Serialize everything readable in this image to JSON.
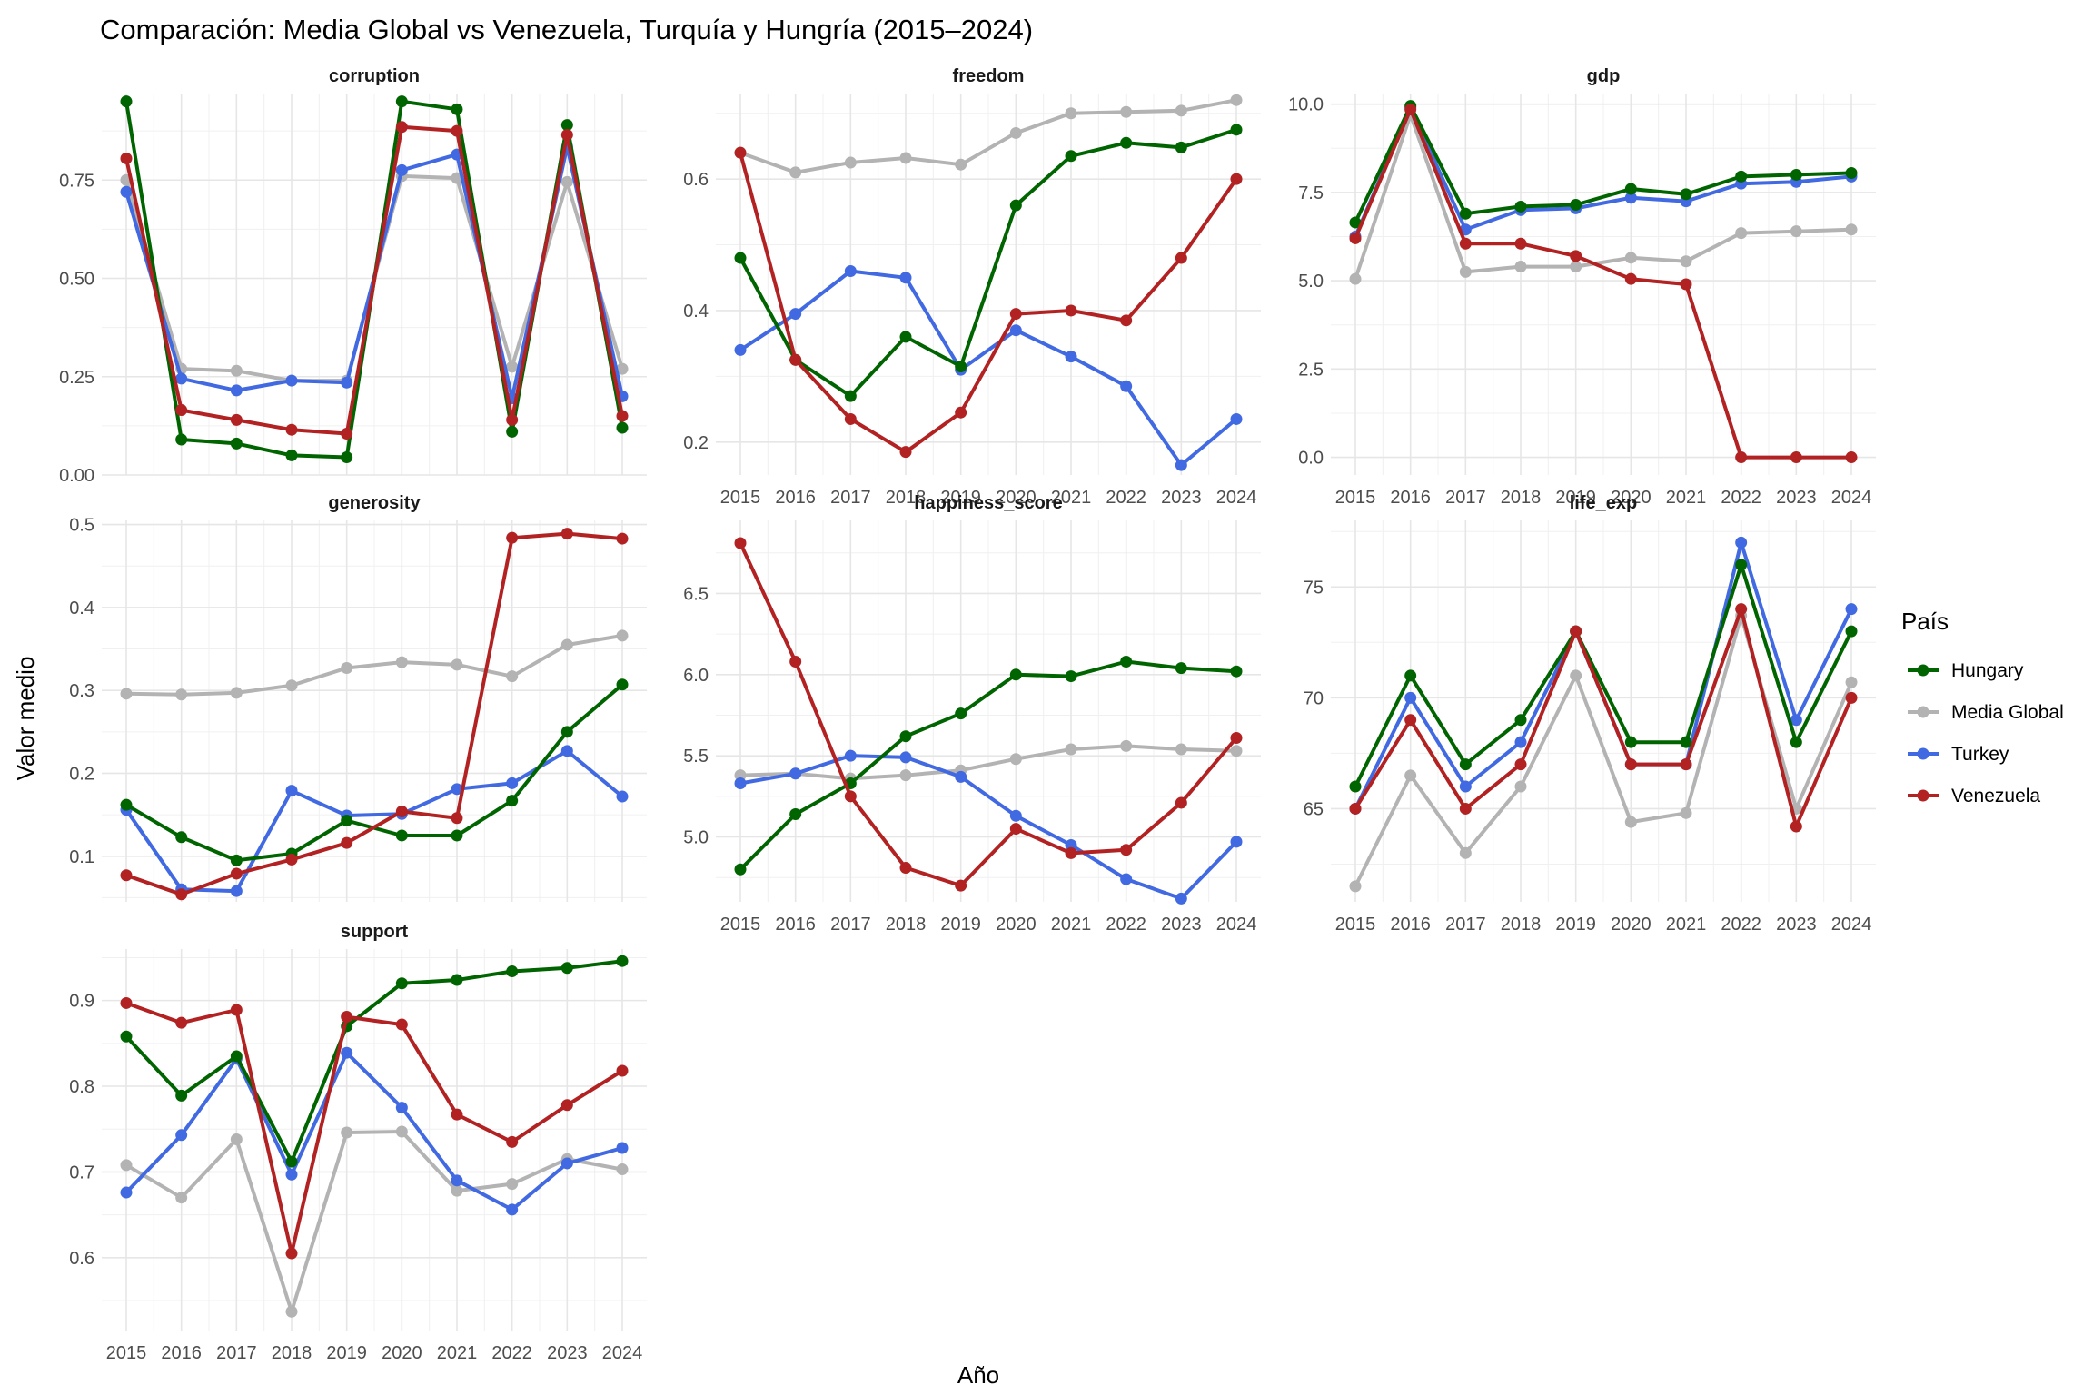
{
  "chart_data": {
    "type": "line",
    "title": "Comparación: Media Global vs Venezuela, Turquía y Hungría (2015–2024)",
    "xlabel": "Año",
    "ylabel": "Valor medio",
    "legend_title": "País",
    "legend_position": "right",
    "grid": true,
    "x": [
      2015,
      2016,
      2017,
      2018,
      2019,
      2020,
      2021,
      2022,
      2023,
      2024
    ],
    "x_tick_labels": [
      "2015",
      "2016",
      "2017",
      "2018",
      "2019",
      "2020",
      "2021",
      "2022",
      "2023",
      "2024"
    ],
    "series_styles": [
      {
        "name": "Hungary",
        "color": "#006400"
      },
      {
        "name": "Media Global",
        "color": "#b3b3b3"
      },
      {
        "name": "Turkey",
        "color": "#4169e1"
      },
      {
        "name": "Venezuela",
        "color": "#b22222"
      }
    ],
    "panels": [
      {
        "title": "corruption",
        "ylim": [
          0,
          0.97
        ],
        "y_ticks": [
          0,
          0.25,
          0.5,
          0.75
        ],
        "y_tick_labels": [
          "0.00",
          "0.25",
          "0.50",
          "0.75"
        ],
        "series": [
          {
            "name": "Hungary",
            "values": [
              0.95,
              0.09,
              0.08,
              0.05,
              0.045,
              0.95,
              0.93,
              0.11,
              0.89,
              0.12
            ]
          },
          {
            "name": "Media Global",
            "values": [
              0.75,
              0.27,
              0.265,
              0.24,
              0.24,
              0.76,
              0.755,
              0.275,
              0.745,
              0.27
            ]
          },
          {
            "name": "Turkey",
            "values": [
              0.72,
              0.245,
              0.215,
              0.24,
              0.235,
              0.775,
              0.815,
              0.195,
              0.835,
              0.2
            ]
          },
          {
            "name": "Venezuela",
            "values": [
              0.805,
              0.165,
              0.14,
              0.115,
              0.105,
              0.885,
              0.875,
              0.14,
              0.865,
              0.15
            ]
          }
        ]
      },
      {
        "title": "freedom",
        "ylim": [
          0.15,
          0.73
        ],
        "y_ticks": [
          0.2,
          0.4,
          0.6
        ],
        "y_tick_labels": [
          "0.2",
          "0.4",
          "0.6"
        ],
        "series": [
          {
            "name": "Hungary",
            "values": [
              0.48,
              0.325,
              0.27,
              0.36,
              0.315,
              0.56,
              0.635,
              0.655,
              0.648,
              0.675
            ]
          },
          {
            "name": "Media Global",
            "values": [
              0.64,
              0.61,
              0.625,
              0.632,
              0.622,
              0.67,
              0.7,
              0.702,
              0.704,
              0.72
            ]
          },
          {
            "name": "Turkey",
            "values": [
              0.34,
              0.395,
              0.46,
              0.45,
              0.31,
              0.37,
              0.33,
              0.285,
              0.165,
              0.235
            ]
          },
          {
            "name": "Venezuela",
            "values": [
              0.64,
              0.325,
              0.235,
              0.185,
              0.245,
              0.395,
              0.4,
              0.385,
              0.48,
              0.6
            ]
          }
        ]
      },
      {
        "title": "gdp",
        "ylim": [
          -0.5,
          10.3
        ],
        "y_ticks": [
          0,
          2.5,
          5,
          7.5,
          10
        ],
        "y_tick_labels": [
          "0.0",
          "2.5",
          "5.0",
          "7.5",
          "10.0"
        ],
        "series": [
          {
            "name": "Hungary",
            "values": [
              6.65,
              9.95,
              6.9,
              7.1,
              7.15,
              7.6,
              7.45,
              7.95,
              8.0,
              8.05
            ]
          },
          {
            "name": "Media Global",
            "values": [
              5.05,
              9.7,
              5.25,
              5.4,
              5.4,
              5.65,
              5.55,
              6.35,
              6.4,
              6.45
            ]
          },
          {
            "name": "Turkey",
            "values": [
              6.25,
              9.9,
              6.45,
              7.0,
              7.05,
              7.35,
              7.25,
              7.75,
              7.8,
              7.95
            ]
          },
          {
            "name": "Venezuela",
            "values": [
              6.2,
              9.85,
              6.05,
              6.05,
              5.7,
              5.05,
              4.9,
              0.0,
              0.0,
              0.0
            ]
          }
        ]
      },
      {
        "title": "generosity",
        "ylim": [
          0.045,
          0.505
        ],
        "y_ticks": [
          0.1,
          0.2,
          0.3,
          0.4,
          0.5
        ],
        "y_tick_labels": [
          "0.1",
          "0.2",
          "0.3",
          "0.4",
          "0.5"
        ],
        "series": [
          {
            "name": "Hungary",
            "values": [
              0.162,
              0.123,
              0.095,
              0.103,
              0.143,
              0.125,
              0.125,
              0.167,
              0.25,
              0.307
            ]
          },
          {
            "name": "Media Global",
            "values": [
              0.296,
              0.295,
              0.297,
              0.306,
              0.327,
              0.334,
              0.331,
              0.317,
              0.355,
              0.366
            ]
          },
          {
            "name": "Turkey",
            "values": [
              0.156,
              0.06,
              0.058,
              0.179,
              0.149,
              0.151,
              0.181,
              0.188,
              0.227,
              0.172
            ]
          },
          {
            "name": "Venezuela",
            "values": [
              0.077,
              0.054,
              0.079,
              0.096,
              0.116,
              0.154,
              0.146,
              0.484,
              0.489,
              0.483
            ]
          }
        ]
      },
      {
        "title": "happiness_score",
        "ylim": [
          4.6,
          6.95
        ],
        "y_ticks": [
          5.0,
          5.5,
          6.0,
          6.5
        ],
        "y_tick_labels": [
          "5.0",
          "5.5",
          "6.0",
          "6.5"
        ],
        "series": [
          {
            "name": "Hungary",
            "values": [
              4.8,
              5.14,
              5.33,
              5.62,
              5.76,
              6.0,
              5.99,
              6.08,
              6.04,
              6.02
            ]
          },
          {
            "name": "Media Global",
            "values": [
              5.38,
              5.39,
              5.36,
              5.38,
              5.41,
              5.48,
              5.54,
              5.56,
              5.54,
              5.53
            ]
          },
          {
            "name": "Turkey",
            "values": [
              5.33,
              5.39,
              5.5,
              5.49,
              5.37,
              5.13,
              4.95,
              4.74,
              4.62,
              4.97
            ]
          },
          {
            "name": "Venezuela",
            "values": [
              6.81,
              6.08,
              5.25,
              4.81,
              4.7,
              5.05,
              4.9,
              4.92,
              5.21,
              5.61
            ]
          }
        ]
      },
      {
        "title": "life_exp",
        "ylim": [
          60.8,
          78.0
        ],
        "y_ticks": [
          65,
          70,
          75
        ],
        "y_tick_labels": [
          "65",
          "70",
          "75"
        ],
        "series": [
          {
            "name": "Hungary",
            "values": [
              66,
              71,
              67,
              69,
              73,
              68,
              68,
              76,
              68,
              73
            ]
          },
          {
            "name": "Media Global",
            "values": [
              61.5,
              66.5,
              63.0,
              66.0,
              71.0,
              64.4,
              64.8,
              73.7,
              65.0,
              70.7
            ]
          },
          {
            "name": "Turkey",
            "values": [
              65,
              70,
              66,
              68,
              73,
              67,
              67,
              77,
              69,
              74
            ]
          },
          {
            "name": "Venezuela",
            "values": [
              65,
              69,
              65,
              67,
              73,
              67,
              67,
              74,
              64.2,
              70
            ]
          }
        ]
      },
      {
        "title": "support",
        "ylim": [
          0.515,
          0.96
        ],
        "y_ticks": [
          0.6,
          0.7,
          0.8,
          0.9
        ],
        "y_tick_labels": [
          "0.6",
          "0.7",
          "0.8",
          "0.9"
        ],
        "series": [
          {
            "name": "Hungary",
            "values": [
              0.858,
              0.789,
              0.835,
              0.712,
              0.87,
              0.92,
              0.924,
              0.934,
              0.938,
              0.946
            ]
          },
          {
            "name": "Media Global",
            "values": [
              0.708,
              0.67,
              0.738,
              0.537,
              0.746,
              0.747,
              0.678,
              0.686,
              0.715,
              0.703
            ]
          },
          {
            "name": "Turkey",
            "values": [
              0.676,
              0.743,
              0.832,
              0.697,
              0.839,
              0.775,
              0.69,
              0.656,
              0.71,
              0.728
            ]
          },
          {
            "name": "Venezuela",
            "values": [
              0.897,
              0.874,
              0.889,
              0.605,
              0.881,
              0.872,
              0.767,
              0.735,
              0.778,
              0.818
            ]
          }
        ]
      }
    ]
  }
}
